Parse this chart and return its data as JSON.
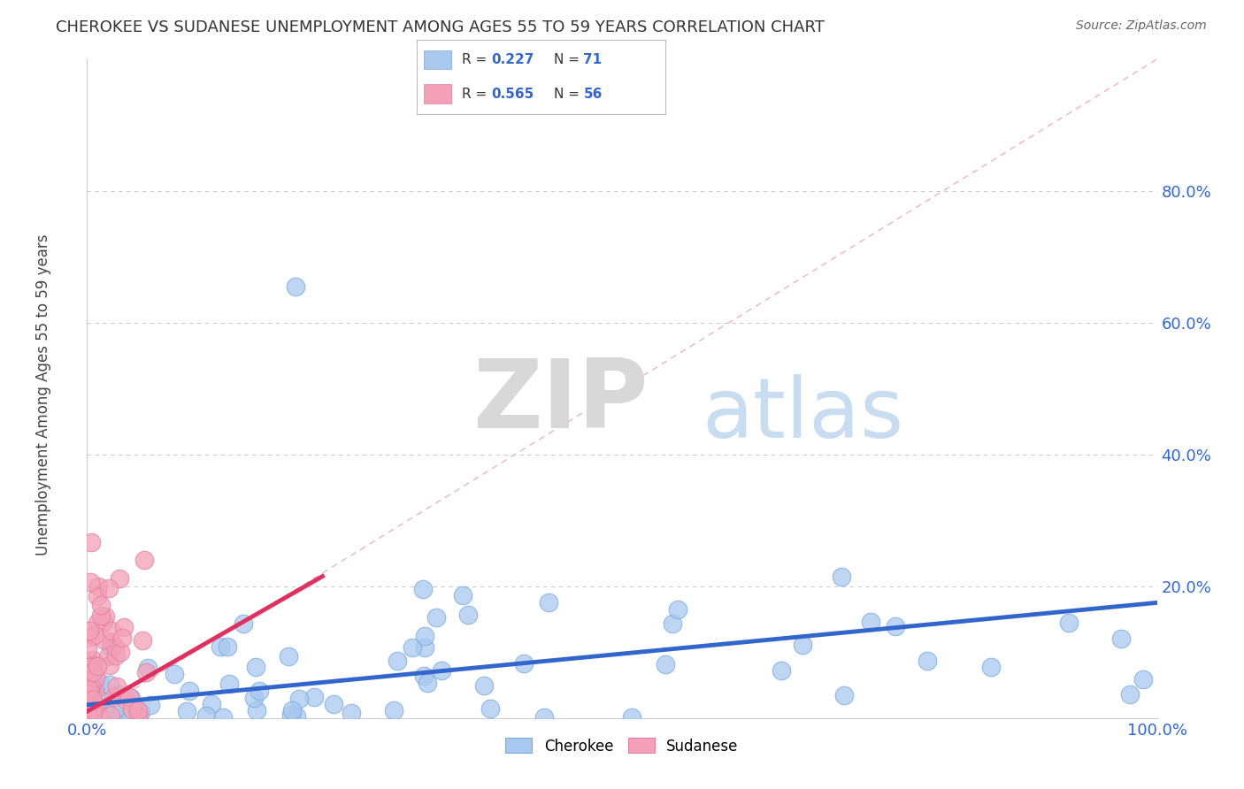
{
  "title": "CHEROKEE VS SUDANESE UNEMPLOYMENT AMONG AGES 55 TO 59 YEARS CORRELATION CHART",
  "source": "Source: ZipAtlas.com",
  "ylabel": "Unemployment Among Ages 55 to 59 years",
  "y_tick_vals": [
    0.0,
    0.2,
    0.4,
    0.6,
    0.8
  ],
  "y_tick_labels": [
    "",
    "20.0%",
    "40.0%",
    "60.0%",
    "80.0%"
  ],
  "x_tick_labels": [
    "0.0%",
    "100.0%"
  ],
  "legend_top_labels": [
    "Cherokee",
    "Sudanese"
  ],
  "R_cherokee": 0.227,
  "N_cherokee": 71,
  "R_sudanese": 0.565,
  "N_sudanese": 56,
  "cherokee_color": "#a8c8f0",
  "cherokee_edge_color": "#7aaad8",
  "cherokee_line_color": "#3366cc",
  "sudanese_color": "#f4a0b8",
  "sudanese_edge_color": "#e080a0",
  "sudanese_line_color": "#e03060",
  "diag_line_color": "#e080a0",
  "watermark_zip_color": "#d8d8d8",
  "watermark_atlas_color": "#c8ddf0",
  "bg_color": "#ffffff",
  "grid_color": "#cccccc"
}
